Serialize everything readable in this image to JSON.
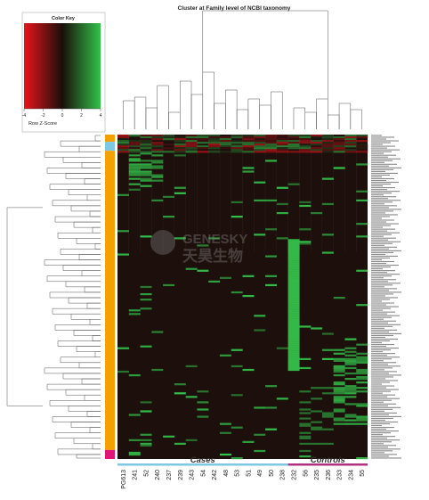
{
  "chart_data": {
    "type": "heatmap",
    "title": "Cluster at Family level of NCBI taxonomy",
    "color_key": {
      "title": "Color Key",
      "axis_label": "Row Z-Score",
      "ticks": [
        "-4",
        "-2",
        "0",
        "2",
        "4"
      ],
      "range": [
        -4,
        4
      ],
      "colors": {
        "low": "#e8141c",
        "mid": "#1a0f0a",
        "high": "#33c24a"
      }
    },
    "columns": [
      "PG613",
      "241",
      "52",
      "240",
      "237",
      "239",
      "243",
      "54",
      "242",
      "48",
      "53",
      "51",
      "49",
      "50",
      "238",
      "232",
      "56",
      "235",
      "236",
      "233",
      "234",
      "55"
    ],
    "groups": [
      {
        "label": "Cases",
        "color": "#7ec8e3",
        "columns": [
          "PG613",
          "241",
          "52",
          "240",
          "237",
          "239",
          "243",
          "54",
          "242",
          "48",
          "53",
          "51",
          "49",
          "50",
          "238"
        ]
      },
      {
        "label": "Controls",
        "color": "#b0317f",
        "columns": [
          "232",
          "56",
          "235",
          "236",
          "233",
          "234",
          "55"
        ]
      }
    ],
    "row_side_colors": [
      {
        "color": "#f4a100",
        "rows": "1-4"
      },
      {
        "color": "#7ec8e3",
        "rows": "5-9"
      },
      {
        "color": "#f4a100",
        "rows": "10-175"
      },
      {
        "color": "#e0157a",
        "rows": "176-180"
      }
    ],
    "n_rows": 180
  },
  "watermark": {
    "text": "GENESKY",
    "subtext": "天昊生物"
  }
}
